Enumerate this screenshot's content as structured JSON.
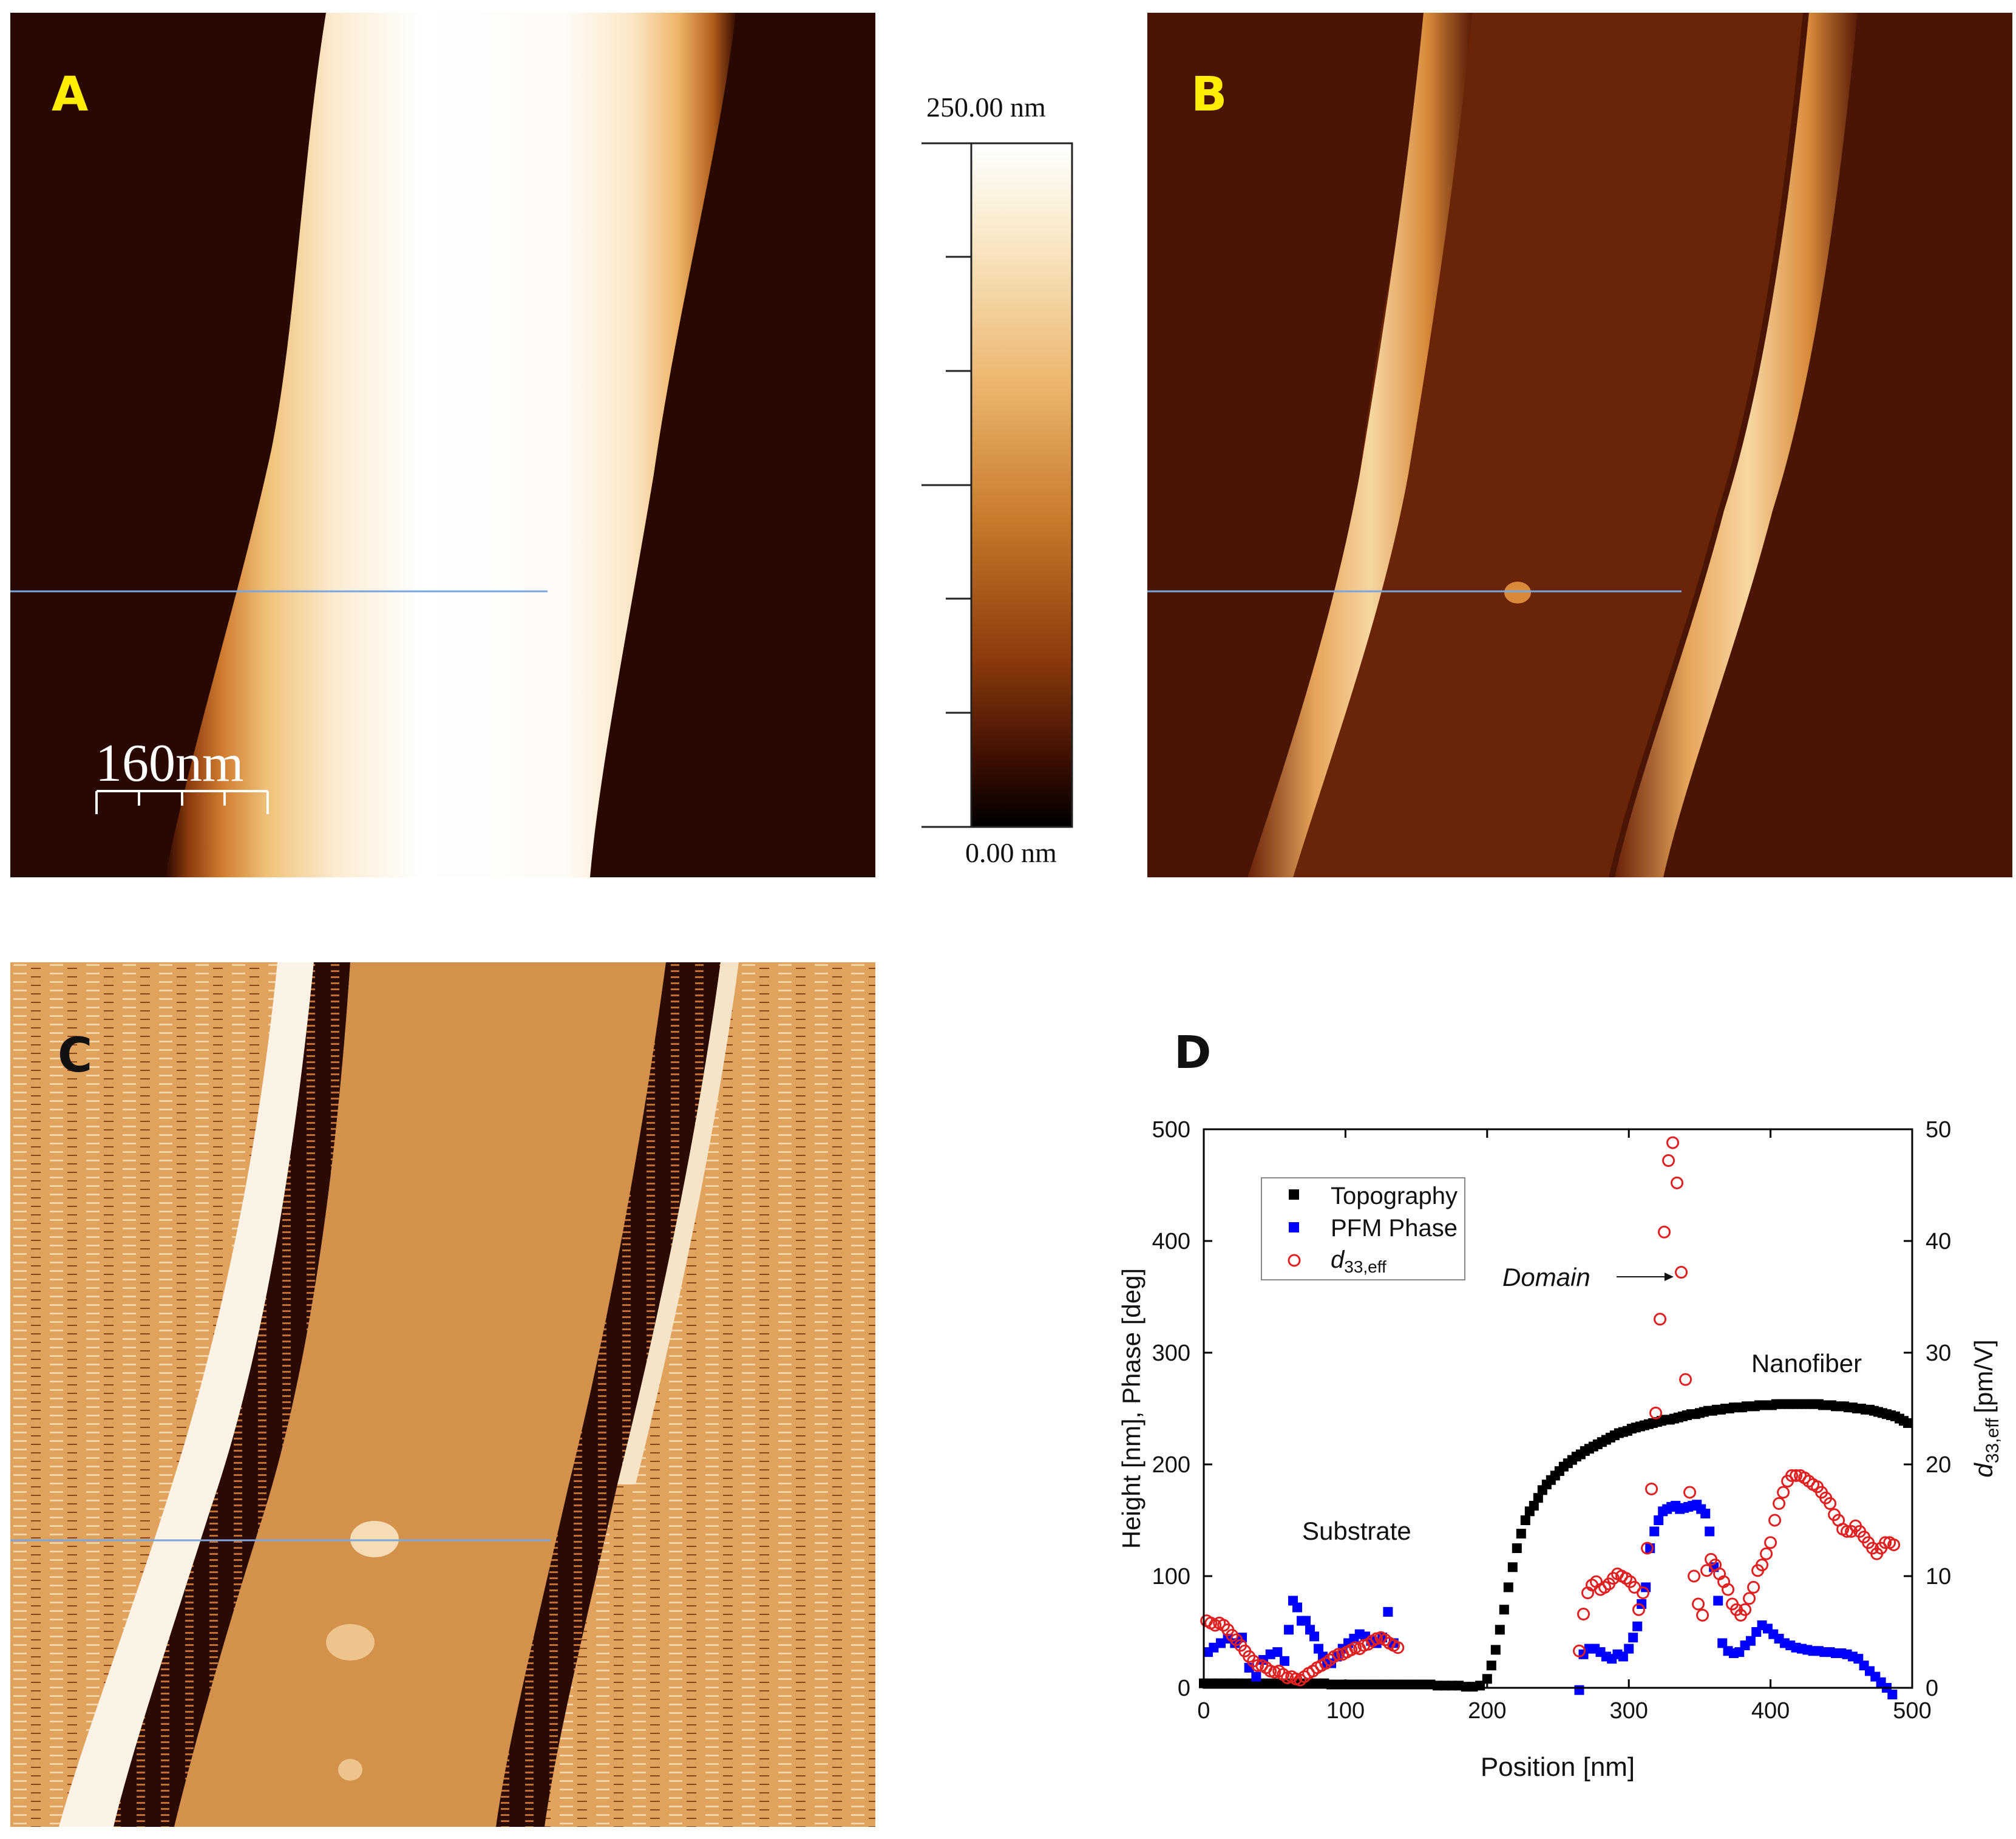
{
  "panels": {
    "a": {
      "letter": "A",
      "scale_bar_label": "160nm"
    },
    "b": {
      "letter": "B"
    },
    "c": {
      "letter": "C"
    },
    "d": {
      "letter": "D"
    }
  },
  "colorbar": {
    "top_label": "250.00 nm",
    "bottom_label": "0.00 nm",
    "colors": [
      "#ffffff",
      "#f8e6c2",
      "#ecb66e",
      "#c87a2b",
      "#8e3c0c",
      "#3e0f02",
      "#000000"
    ]
  },
  "colors": {
    "topography": "#000000",
    "pfm_phase": "#0000ff",
    "d33": "#e02020",
    "label_yellow": "#ffee00"
  },
  "chart_data": {
    "type": "scatter",
    "title": "",
    "xlabel": "Position [nm]",
    "ylabel_left": "Height [nm], Phase [deg]",
    "ylabel_right_main": "d",
    "ylabel_right_sub": "33,eff",
    "ylabel_right_unit": "[pm/V]",
    "xlim": [
      0,
      500
    ],
    "ylim_left": [
      0,
      500
    ],
    "ylim_right": [
      0,
      50
    ],
    "x_ticks": [
      "0",
      "100",
      "200",
      "300",
      "400",
      "500"
    ],
    "y_ticks_left": [
      "0",
      "100",
      "200",
      "300",
      "400",
      "500"
    ],
    "y_ticks_right": [
      "0",
      "10",
      "20",
      "30",
      "40",
      "50"
    ],
    "grid": false,
    "legend_position": "top-left",
    "annotations": {
      "substrate": "Substrate",
      "domain": "Domain",
      "nanofiber": "Nanofiber"
    },
    "series": [
      {
        "name": "Topography",
        "axis": "left",
        "marker": "square",
        "x": [
          0,
          5,
          10,
          15,
          20,
          25,
          30,
          35,
          40,
          45,
          50,
          55,
          60,
          65,
          70,
          75,
          80,
          85,
          90,
          95,
          100,
          105,
          110,
          115,
          120,
          125,
          130,
          135,
          140,
          145,
          150,
          155,
          160,
          165,
          170,
          175,
          180,
          185,
          190,
          195,
          200,
          203,
          206,
          209,
          212,
          215,
          218,
          221,
          224,
          227,
          230,
          233,
          236,
          239,
          242,
          245,
          248,
          251,
          254,
          257,
          260,
          263,
          266,
          269,
          272,
          275,
          278,
          281,
          284,
          287,
          290,
          293,
          296,
          299,
          302,
          305,
          308,
          311,
          314,
          317,
          320,
          323,
          326,
          329,
          332,
          335,
          338,
          341,
          344,
          347,
          350,
          353,
          356,
          359,
          362,
          365,
          368,
          371,
          374,
          377,
          380,
          383,
          386,
          389,
          392,
          395,
          398,
          401,
          404,
          407,
          410,
          413,
          416,
          419,
          422,
          425,
          428,
          431,
          434,
          437,
          440,
          443,
          446,
          449,
          452,
          455,
          458,
          461,
          464,
          467,
          470,
          473,
          476,
          479,
          482,
          485,
          488,
          491,
          494,
          497
        ],
        "y": [
          4,
          4,
          4,
          4,
          4,
          4,
          4,
          4,
          4,
          4,
          4,
          4,
          4,
          4,
          4,
          4,
          4,
          4,
          3,
          3,
          3,
          3,
          3,
          3,
          3,
          3,
          3,
          3,
          3,
          3,
          3,
          3,
          3,
          2,
          2,
          2,
          2,
          1,
          1,
          2,
          8,
          20,
          34,
          52,
          70,
          90,
          108,
          125,
          138,
          150,
          158,
          163,
          170,
          177,
          182,
          186,
          190,
          194,
          198,
          201,
          204,
          207,
          209,
          212,
          214,
          216,
          218,
          220,
          222,
          224,
          226,
          228,
          229,
          230,
          232,
          233,
          234,
          235,
          236,
          237,
          238,
          239,
          240,
          240,
          241,
          242,
          243,
          244,
          245,
          245,
          246,
          247,
          248,
          248,
          249,
          249,
          250,
          250,
          251,
          251,
          251,
          252,
          252,
          252,
          253,
          253,
          253,
          253,
          254,
          254,
          254,
          254,
          254,
          254,
          254,
          254,
          254,
          254,
          254,
          253,
          253,
          253,
          252,
          252,
          252,
          251,
          251,
          250,
          250,
          249,
          249,
          248,
          247,
          246,
          245,
          244,
          243,
          241,
          239,
          237
        ]
      },
      {
        "name": "PFM Phase",
        "axis": "left",
        "marker": "square",
        "x": [
          3,
          7,
          12,
          17,
          22,
          27,
          32,
          37,
          42,
          47,
          52,
          57,
          60,
          63,
          66,
          69,
          72,
          75,
          78,
          81,
          84,
          87,
          90,
          94,
          98,
          102,
          106,
          110,
          114,
          118,
          122,
          126,
          130,
          134,
          265,
          268,
          272,
          276,
          280,
          284,
          288,
          292,
          296,
          300,
          303,
          306,
          309,
          312,
          315,
          318,
          321,
          324,
          327,
          330,
          333,
          336,
          339,
          342,
          345,
          348,
          351,
          354,
          357,
          360,
          363,
          366,
          370,
          374,
          378,
          382,
          386,
          390,
          394,
          398,
          402,
          406,
          410,
          414,
          418,
          422,
          426,
          430,
          434,
          438,
          442,
          446,
          450,
          454,
          458,
          462,
          466,
          470,
          474,
          478,
          482,
          486
        ],
        "y": [
          32,
          36,
          40,
          44,
          40,
          45,
          18,
          10,
          25,
          30,
          32,
          24,
          52,
          78,
          72,
          60,
          60,
          52,
          46,
          35,
          28,
          22,
          22,
          28,
          35,
          40,
          44,
          48,
          46,
          42,
          40,
          45,
          68,
          40,
          -2,
          30,
          35,
          35,
          32,
          28,
          26,
          30,
          28,
          35,
          45,
          55,
          75,
          90,
          125,
          140,
          150,
          158,
          160,
          162,
          163,
          160,
          161,
          162,
          163,
          164,
          160,
          156,
          140,
          108,
          78,
          40,
          33,
          31,
          32,
          38,
          42,
          50,
          56,
          53,
          48,
          44,
          40,
          38,
          36,
          35,
          34,
          33,
          33,
          32,
          32,
          31,
          31,
          30,
          28,
          26,
          20,
          15,
          10,
          5,
          0,
          -6
        ]
      },
      {
        "name": "d33,eff",
        "axis": "right",
        "marker": "open-circle",
        "x": [
          2,
          5,
          8,
          11,
          14,
          17,
          20,
          23,
          26,
          29,
          32,
          35,
          38,
          41,
          44,
          47,
          50,
          53,
          56,
          59,
          62,
          65,
          68,
          71,
          74,
          77,
          80,
          83,
          86,
          89,
          92,
          95,
          98,
          101,
          104,
          107,
          110,
          113,
          116,
          119,
          122,
          125,
          128,
          131,
          134,
          137,
          265,
          268,
          271,
          274,
          277,
          280,
          283,
          286,
          289,
          292,
          295,
          298,
          301,
          304,
          307,
          310,
          313,
          316,
          319,
          322,
          325,
          328,
          331,
          334,
          337,
          340,
          343,
          346,
          349,
          352,
          355,
          358,
          361,
          364,
          367,
          370,
          373,
          376,
          379,
          382,
          385,
          388,
          391,
          394,
          397,
          400,
          403,
          406,
          409,
          412,
          415,
          418,
          421,
          424,
          427,
          430,
          433,
          436,
          439,
          442,
          445,
          448,
          451,
          454,
          457,
          460,
          463,
          466,
          469,
          472,
          475,
          478,
          481,
          484,
          487
        ],
        "y": [
          6.0,
          5.8,
          5.6,
          5.8,
          5.6,
          5.2,
          4.7,
          4.3,
          3.8,
          3.3,
          2.8,
          2.4,
          2.0,
          2.0,
          1.8,
          1.5,
          1.4,
          1.5,
          1.2,
          0.9,
          1.0,
          0.8,
          0.7,
          1.0,
          1.3,
          1.5,
          1.8,
          2.0,
          2.2,
          2.5,
          2.8,
          3.0,
          3.0,
          3.2,
          3.4,
          3.6,
          3.5,
          3.8,
          3.9,
          4.2,
          4.4,
          4.5,
          4.3,
          4.0,
          3.8,
          3.6,
          3.3,
          6.6,
          8.5,
          9.2,
          9.5,
          8.8,
          9.0,
          9.3,
          9.8,
          10.2,
          10.0,
          9.8,
          9.5,
          9.0,
          7.0,
          8.5,
          12.5,
          17.8,
          24.6,
          33.0,
          40.8,
          47.2,
          48.8,
          45.2,
          37.2,
          27.6,
          17.5,
          10.0,
          7.5,
          6.5,
          10.5,
          11.5,
          11.0,
          10.2,
          9.5,
          8.8,
          7.5,
          7.0,
          6.5,
          7.0,
          8.0,
          9.0,
          10.5,
          11.0,
          12.0,
          13.0,
          15.0,
          16.5,
          17.5,
          18.5,
          19.0,
          19.0,
          19.0,
          18.8,
          18.5,
          18.2,
          18.0,
          17.5,
          17.0,
          16.5,
          15.5,
          15.0,
          14.2,
          14.0,
          14.0,
          14.5,
          14.0,
          13.5,
          13.0,
          12.5,
          12.0,
          12.5,
          13.0,
          13.0,
          12.8
        ]
      }
    ]
  }
}
